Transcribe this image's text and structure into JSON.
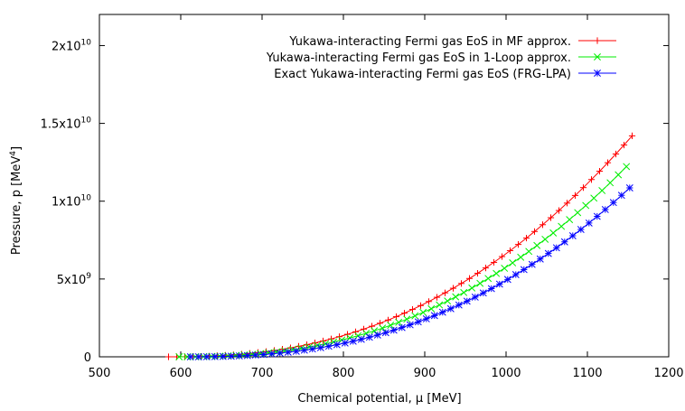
{
  "chart_data": {
    "type": "line",
    "title": "",
    "xlabel": "Chemical potential, μ [MeV]",
    "ylabel_main": "Pressure, p [MeV",
    "ylabel_sup": "4",
    "ylabel_end": "]",
    "xlim": [
      500,
      1200
    ],
    "ylim": [
      0,
      22000000000
    ],
    "xticks": [
      {
        "value": 500,
        "label": "500"
      },
      {
        "value": 600,
        "label": "600"
      },
      {
        "value": 700,
        "label": "700"
      },
      {
        "value": 800,
        "label": "800"
      },
      {
        "value": 900,
        "label": "900"
      },
      {
        "value": 1000,
        "label": "1000"
      },
      {
        "value": 1100,
        "label": "1100"
      },
      {
        "value": 1200,
        "label": "1200"
      }
    ],
    "yticks": [
      {
        "value": 0,
        "mant": "0",
        "exp": ""
      },
      {
        "value": 5000000000,
        "mant": "5x10",
        "exp": "9"
      },
      {
        "value": 10000000000,
        "mant": "1x10",
        "exp": "10"
      },
      {
        "value": 15000000000,
        "mant": "1.5x10",
        "exp": "10"
      },
      {
        "value": 20000000000,
        "mant": "2x10",
        "exp": "10"
      }
    ],
    "legend_position": "top-right",
    "series": [
      {
        "name": "Yukawa-interacting Fermi gas EoS in MF approx.",
        "color": "#ff0000",
        "marker": "plus",
        "x_start": 585,
        "x_end": 1155,
        "x_step": 10,
        "mu0": 585,
        "y_end": 14200000000,
        "exponent": 2.4
      },
      {
        "name": "Yukawa-interacting Fermi gas EoS in 1-Loop approx.",
        "color": "#00ee00",
        "marker": "cross",
        "x_start": 598,
        "x_end": 1155,
        "x_step": 10,
        "mu0": 598,
        "y_end": 12600000000,
        "exponent": 2.4
      },
      {
        "name": "Exact Yukawa-interacting Fermi gas EoS (FRG-LPA)",
        "color": "#0000ff",
        "marker": "star",
        "x_start": 612,
        "x_end": 1155,
        "x_step": 10,
        "mu0": 612,
        "y_end": 11000000000,
        "exponent": 2.4
      }
    ]
  }
}
